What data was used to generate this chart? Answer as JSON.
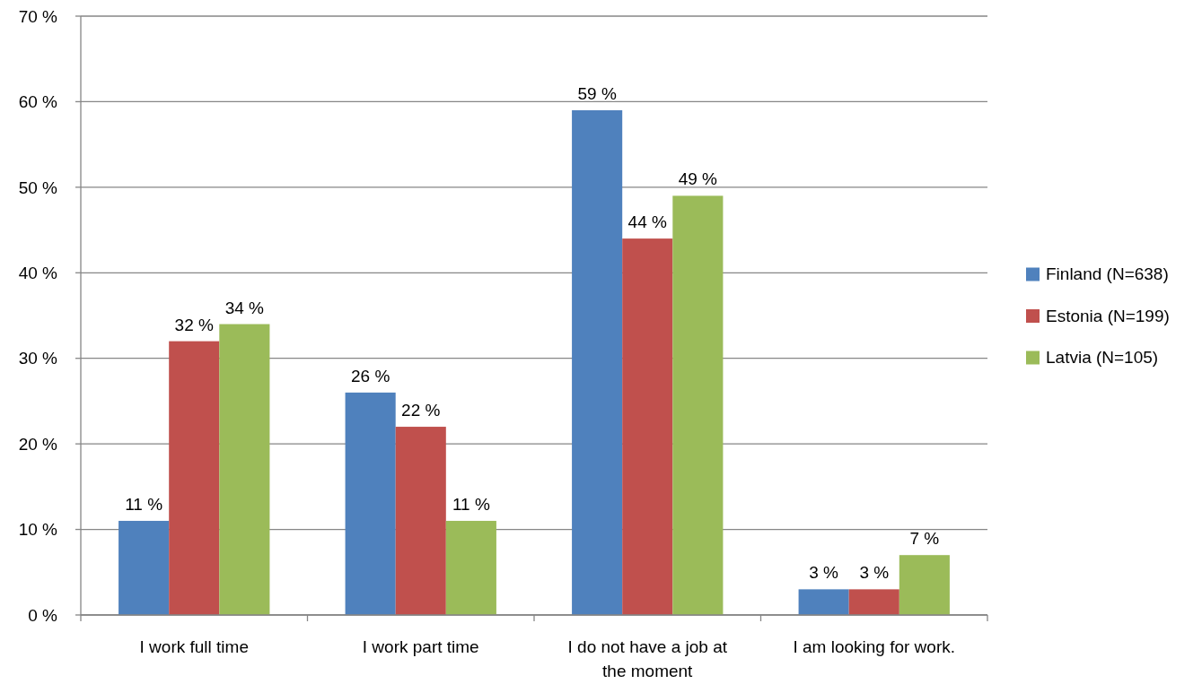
{
  "chart_data": {
    "type": "bar",
    "categories": [
      "I work full time",
      "I work part time",
      "I do not have a job at the moment",
      "I am looking for work."
    ],
    "series": [
      {
        "name": "Finland (N=638)",
        "color": "#4f81bd",
        "values": [
          11,
          26,
          59,
          3
        ],
        "value_labels": [
          "11 %",
          "26 %",
          "59 %",
          "3 %"
        ]
      },
      {
        "name": "Estonia (N=199)",
        "color": "#c0504d",
        "values": [
          32,
          22,
          44,
          3
        ],
        "value_labels": [
          "32 %",
          "22 %",
          "44 %",
          "3 %"
        ]
      },
      {
        "name": "Latvia (N=105)",
        "color": "#9bbb59",
        "values": [
          34,
          11,
          49,
          7
        ],
        "value_labels": [
          "34 %",
          "11 %",
          "49 %",
          "7 %"
        ]
      }
    ],
    "ylim": [
      0,
      70
    ],
    "yticks": [
      {
        "value": 0,
        "label": "0 %"
      },
      {
        "value": 10,
        "label": "10 %"
      },
      {
        "value": 20,
        "label": "20 %"
      },
      {
        "value": 30,
        "label": "30 %"
      },
      {
        "value": 40,
        "label": "40 %"
      },
      {
        "value": 50,
        "label": "50 %"
      },
      {
        "value": 60,
        "label": "60 %"
      },
      {
        "value": 70,
        "label": "70 %"
      }
    ],
    "grid": "y",
    "legend": "right"
  }
}
